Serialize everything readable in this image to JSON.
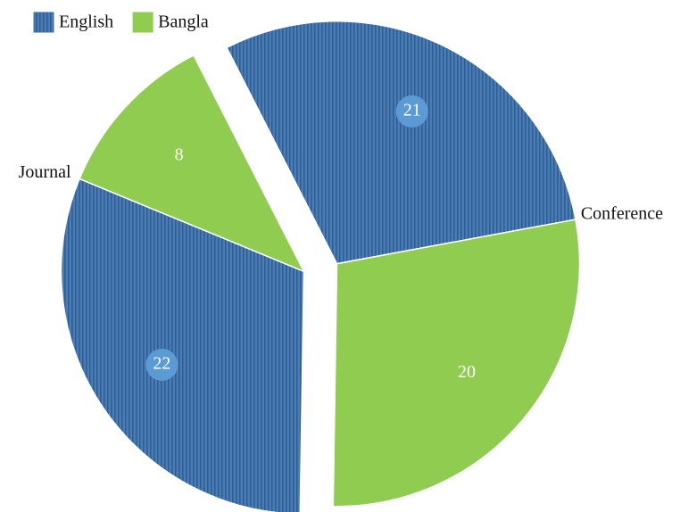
{
  "chart_data": {
    "type": "pie",
    "categories": [
      "Conference",
      "Journal"
    ],
    "series": [
      {
        "name": "English",
        "color": "#3d6fa8",
        "values": [
          21,
          22
        ]
      },
      {
        "name": "Bangla",
        "color": "#8fcc4f",
        "values": [
          20,
          8
        ]
      }
    ],
    "legend": "top-left"
  }
}
